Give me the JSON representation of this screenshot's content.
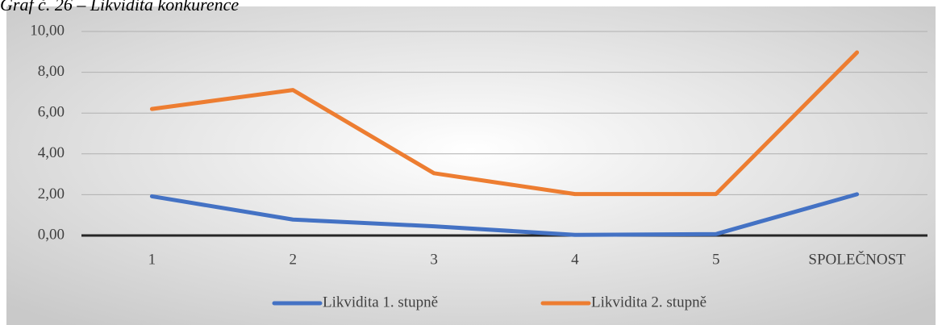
{
  "chart_data": {
    "type": "line",
    "title": "Graf č. 26 – Likvidita konkurence",
    "categories": [
      "1",
      "2",
      "3",
      "4",
      "5",
      "SPOLEČNOST"
    ],
    "series": [
      {
        "name": "Likvidita 1. stupně",
        "color": "#4472c4",
        "values": [
          1.92,
          0.78,
          0.45,
          0.03,
          0.07,
          2.02
        ]
      },
      {
        "name": "Likvidita 2. stupně",
        "color": "#ed7d31",
        "values": [
          6.2,
          7.13,
          3.05,
          2.03,
          2.03,
          8.97
        ]
      }
    ],
    "ylim": [
      0,
      10
    ],
    "yticks": [
      {
        "value": 0,
        "label": "0,00"
      },
      {
        "value": 2,
        "label": "2,00"
      },
      {
        "value": 4,
        "label": "4,00"
      },
      {
        "value": 6,
        "label": "6,00"
      },
      {
        "value": 8,
        "label": "8,00"
      },
      {
        "value": 10,
        "label": "10,00"
      }
    ],
    "grid": true,
    "legend": "bottom"
  }
}
